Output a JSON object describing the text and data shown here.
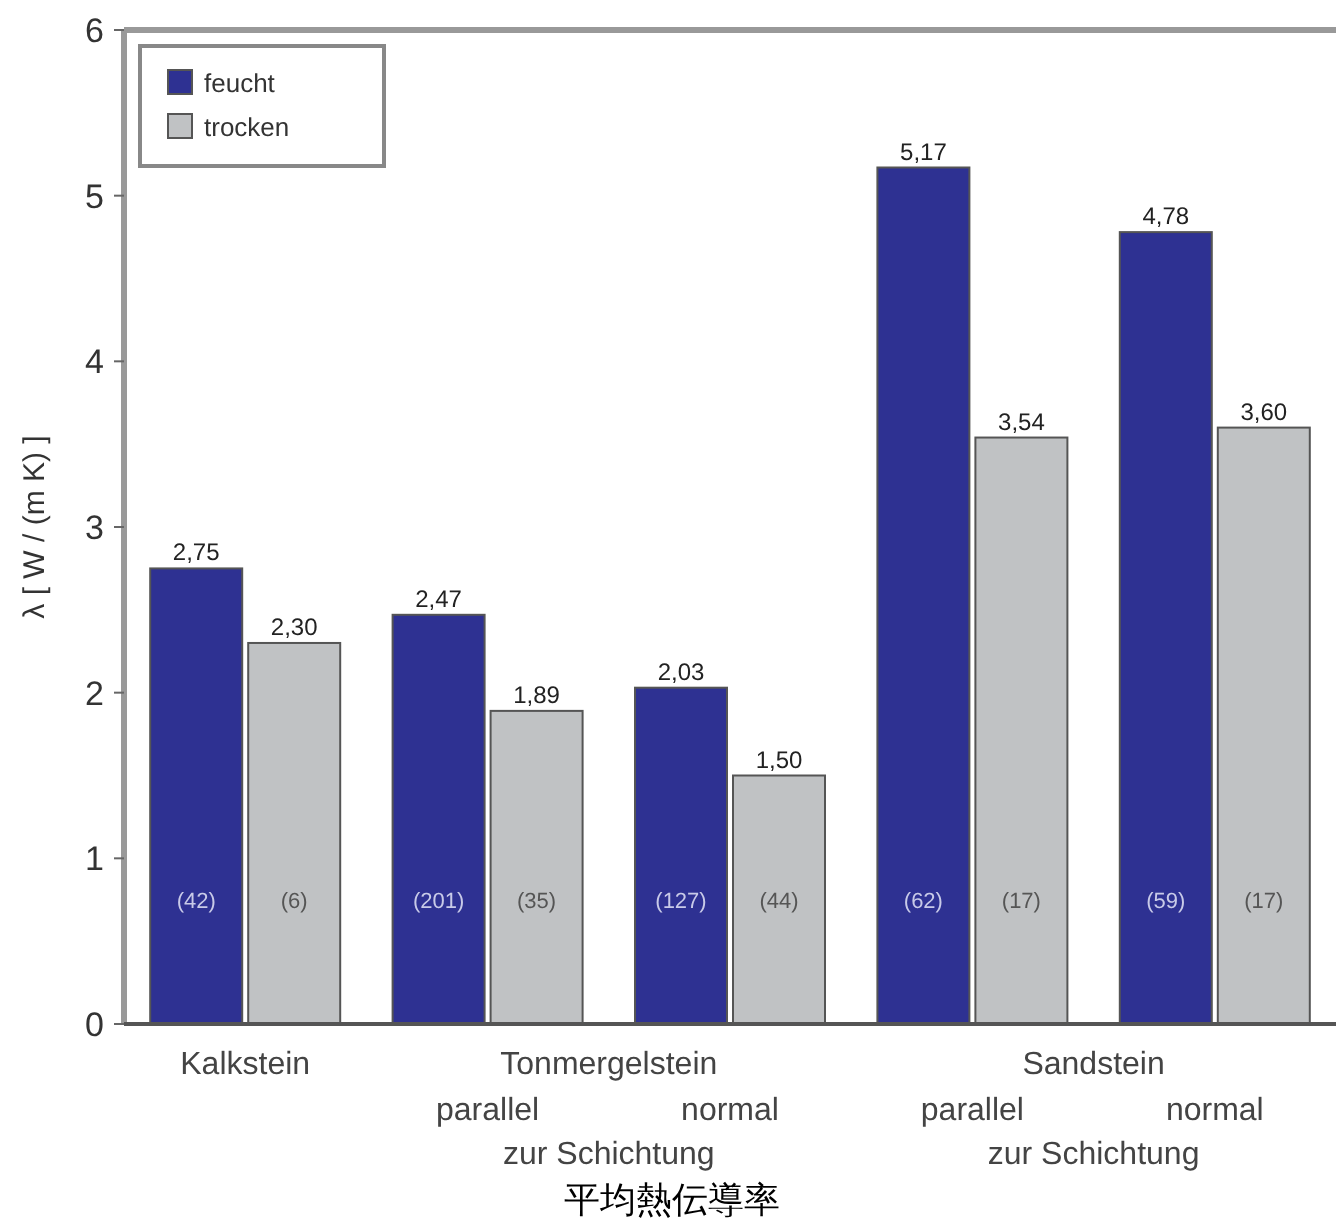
{
  "chart_data": {
    "type": "bar",
    "title": "平均熱伝導率",
    "ylabel": "λ [ W / (m K) ]",
    "categories": [
      "Kalkstein",
      "parallel",
      "normal",
      "parallel",
      "normal"
    ],
    "series": [
      {
        "name": "feucht",
        "color": "#2e3192",
        "values": [
          2.75,
          2.47,
          2.03,
          5.17,
          4.78
        ],
        "value_labels": [
          "2,75",
          "2,47",
          "2,03",
          "5,17",
          "4,78"
        ]
      },
      {
        "name": "trocken",
        "color": "#c0c2c4",
        "values": [
          2.3,
          1.89,
          1.5,
          3.54,
          3.6
        ],
        "value_labels": [
          "2,30",
          "1,89",
          "1,50",
          "3,54",
          "3,60"
        ]
      }
    ],
    "annotations": [
      "Tonmergelstein",
      "zur Schichtung",
      "Sandstein",
      "zur Schichtung",
      "(42)",
      "(201)",
      "(127)",
      "(62)",
      "(59)",
      "(6)",
      "(35)",
      "(44)",
      "(17)",
      "(17)"
    ],
    "ylim": [
      0,
      6
    ],
    "yticks": [
      0,
      1,
      2,
      3,
      4,
      5,
      6
    ],
    "grid": false,
    "legend": "top left"
  }
}
